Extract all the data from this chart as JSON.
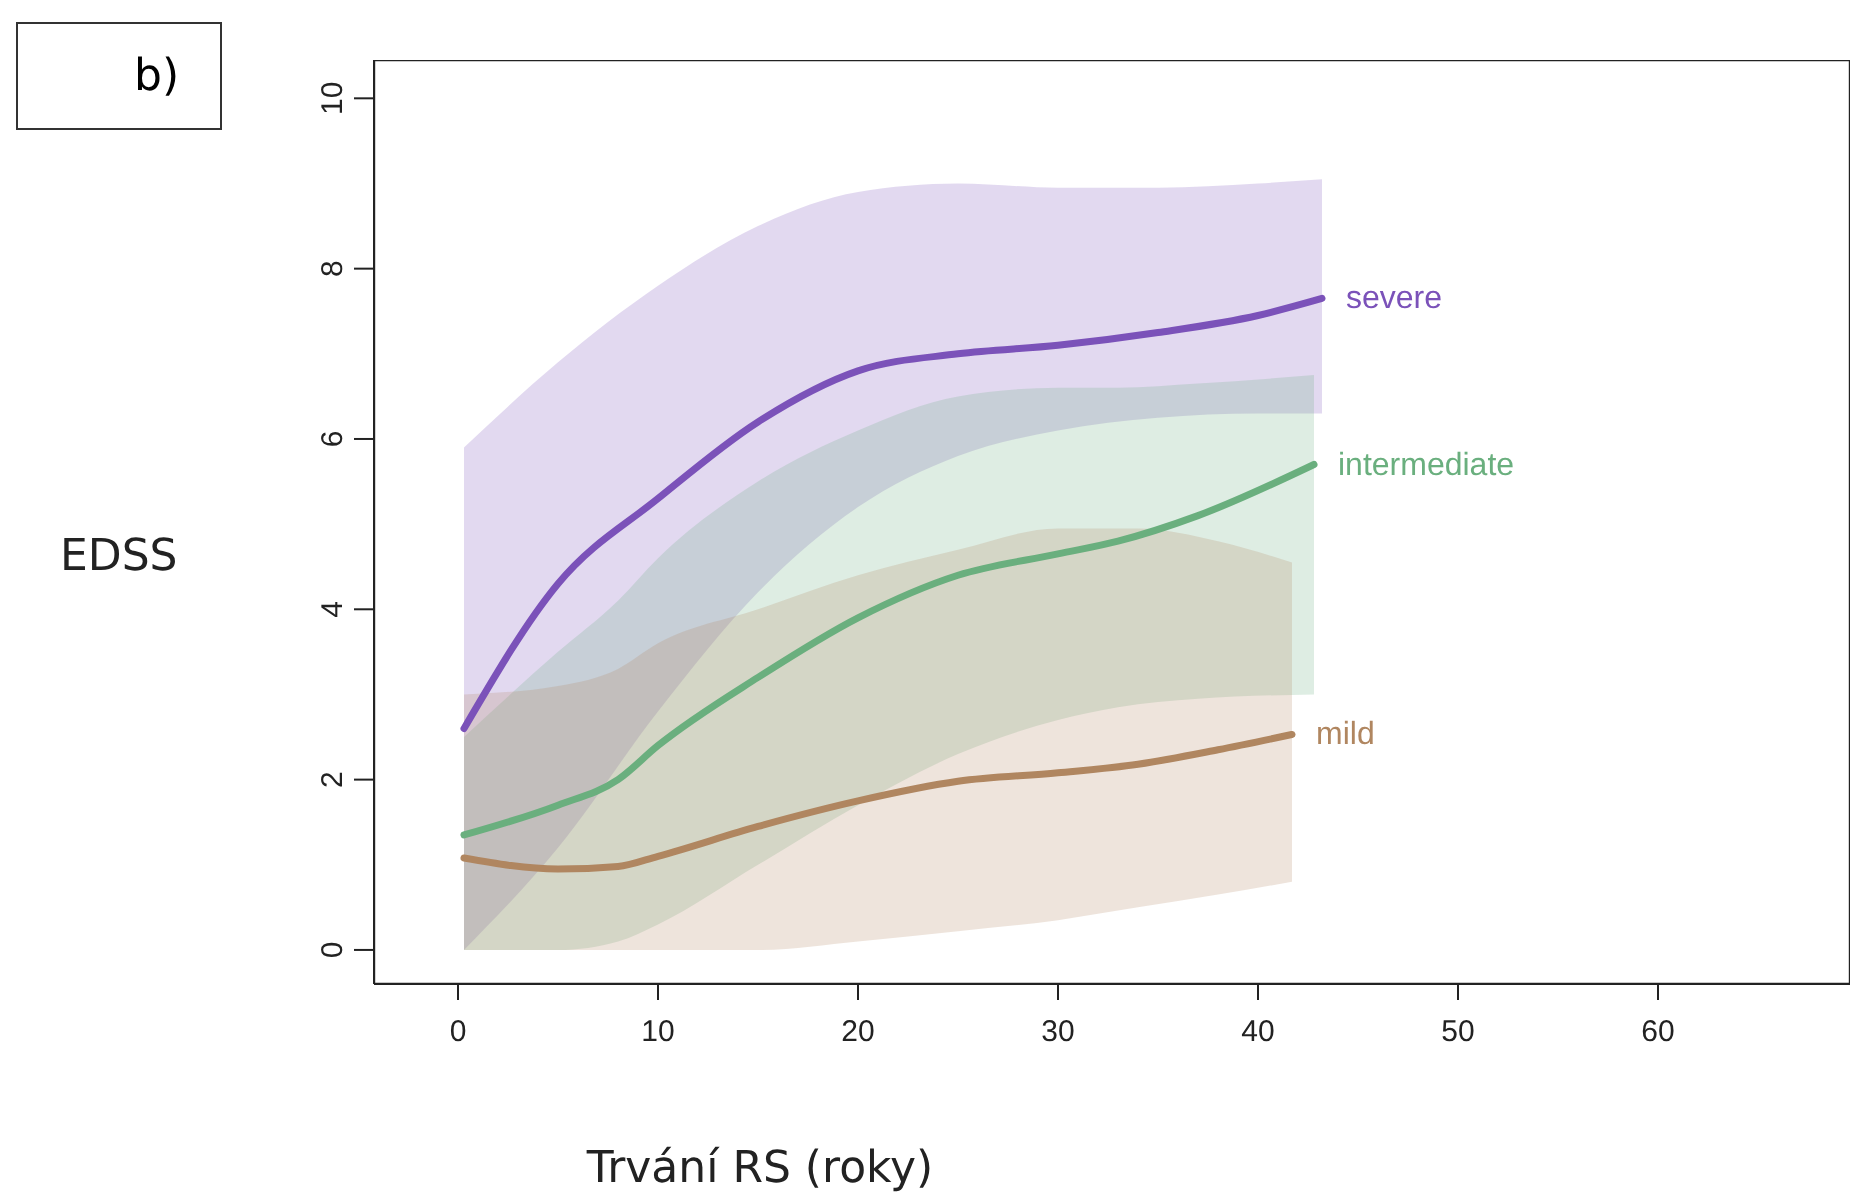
{
  "chart_data": {
    "type": "line",
    "xlabel": "Trvání RS (roky)",
    "ylabel": "EDSS",
    "annotations": [
      "b)"
    ],
    "xlim": [
      -4.2,
      69.6
    ],
    "ylim": [
      -0.4,
      10.45
    ],
    "xticks": [
      0,
      10,
      20,
      30,
      40,
      50,
      60
    ],
    "yticks": [
      0,
      2,
      4,
      6,
      8,
      10
    ],
    "grid": false,
    "legend": false,
    "marker": "none",
    "line_style": "solid",
    "series": [
      {
        "name": "severe",
        "color": "#7b52b9",
        "x": [
          0.3,
          5,
          10,
          15,
          20,
          25,
          30,
          35,
          40,
          43.2
        ],
        "values": [
          2.6,
          4.3,
          5.3,
          6.2,
          6.8,
          7.0,
          7.1,
          7.25,
          7.45,
          7.65
        ],
        "lower": [
          0,
          1.2,
          2.8,
          4.2,
          5.2,
          5.8,
          6.1,
          6.25,
          6.3,
          6.3
        ],
        "upper": [
          5.9,
          6.9,
          7.8,
          8.5,
          8.9,
          9.0,
          8.95,
          8.95,
          9.0,
          9.05
        ]
      },
      {
        "name": "intermediate",
        "color": "#6aaf7e",
        "x": [
          0.3,
          5,
          8,
          10,
          15,
          20,
          25,
          30,
          33,
          37,
          42.8
        ],
        "values": [
          1.35,
          1.7,
          2.0,
          2.4,
          3.2,
          3.9,
          4.4,
          4.65,
          4.8,
          5.1,
          5.7
        ],
        "lower": [
          0,
          0,
          0.1,
          0.3,
          1.0,
          1.7,
          2.3,
          2.7,
          2.85,
          2.95,
          3.0
        ],
        "upper": [
          2.5,
          3.5,
          4.1,
          4.6,
          5.5,
          6.1,
          6.5,
          6.6,
          6.6,
          6.65,
          6.75
        ]
      },
      {
        "name": "mild",
        "color": "#b08660",
        "x": [
          0.3,
          5,
          8,
          10,
          15,
          20,
          25,
          30,
          34,
          38,
          41.7
        ],
        "values": [
          1.08,
          0.95,
          0.98,
          1.1,
          1.45,
          1.75,
          1.98,
          2.08,
          2.18,
          2.35,
          2.53
        ],
        "lower": [
          0,
          0,
          0,
          0,
          0,
          0.1,
          0.22,
          0.35,
          0.5,
          0.65,
          0.8
        ],
        "upper": [
          3.0,
          3.1,
          3.3,
          3.6,
          4.0,
          4.4,
          4.7,
          4.95,
          4.95,
          4.8,
          4.55
        ]
      }
    ]
  }
}
